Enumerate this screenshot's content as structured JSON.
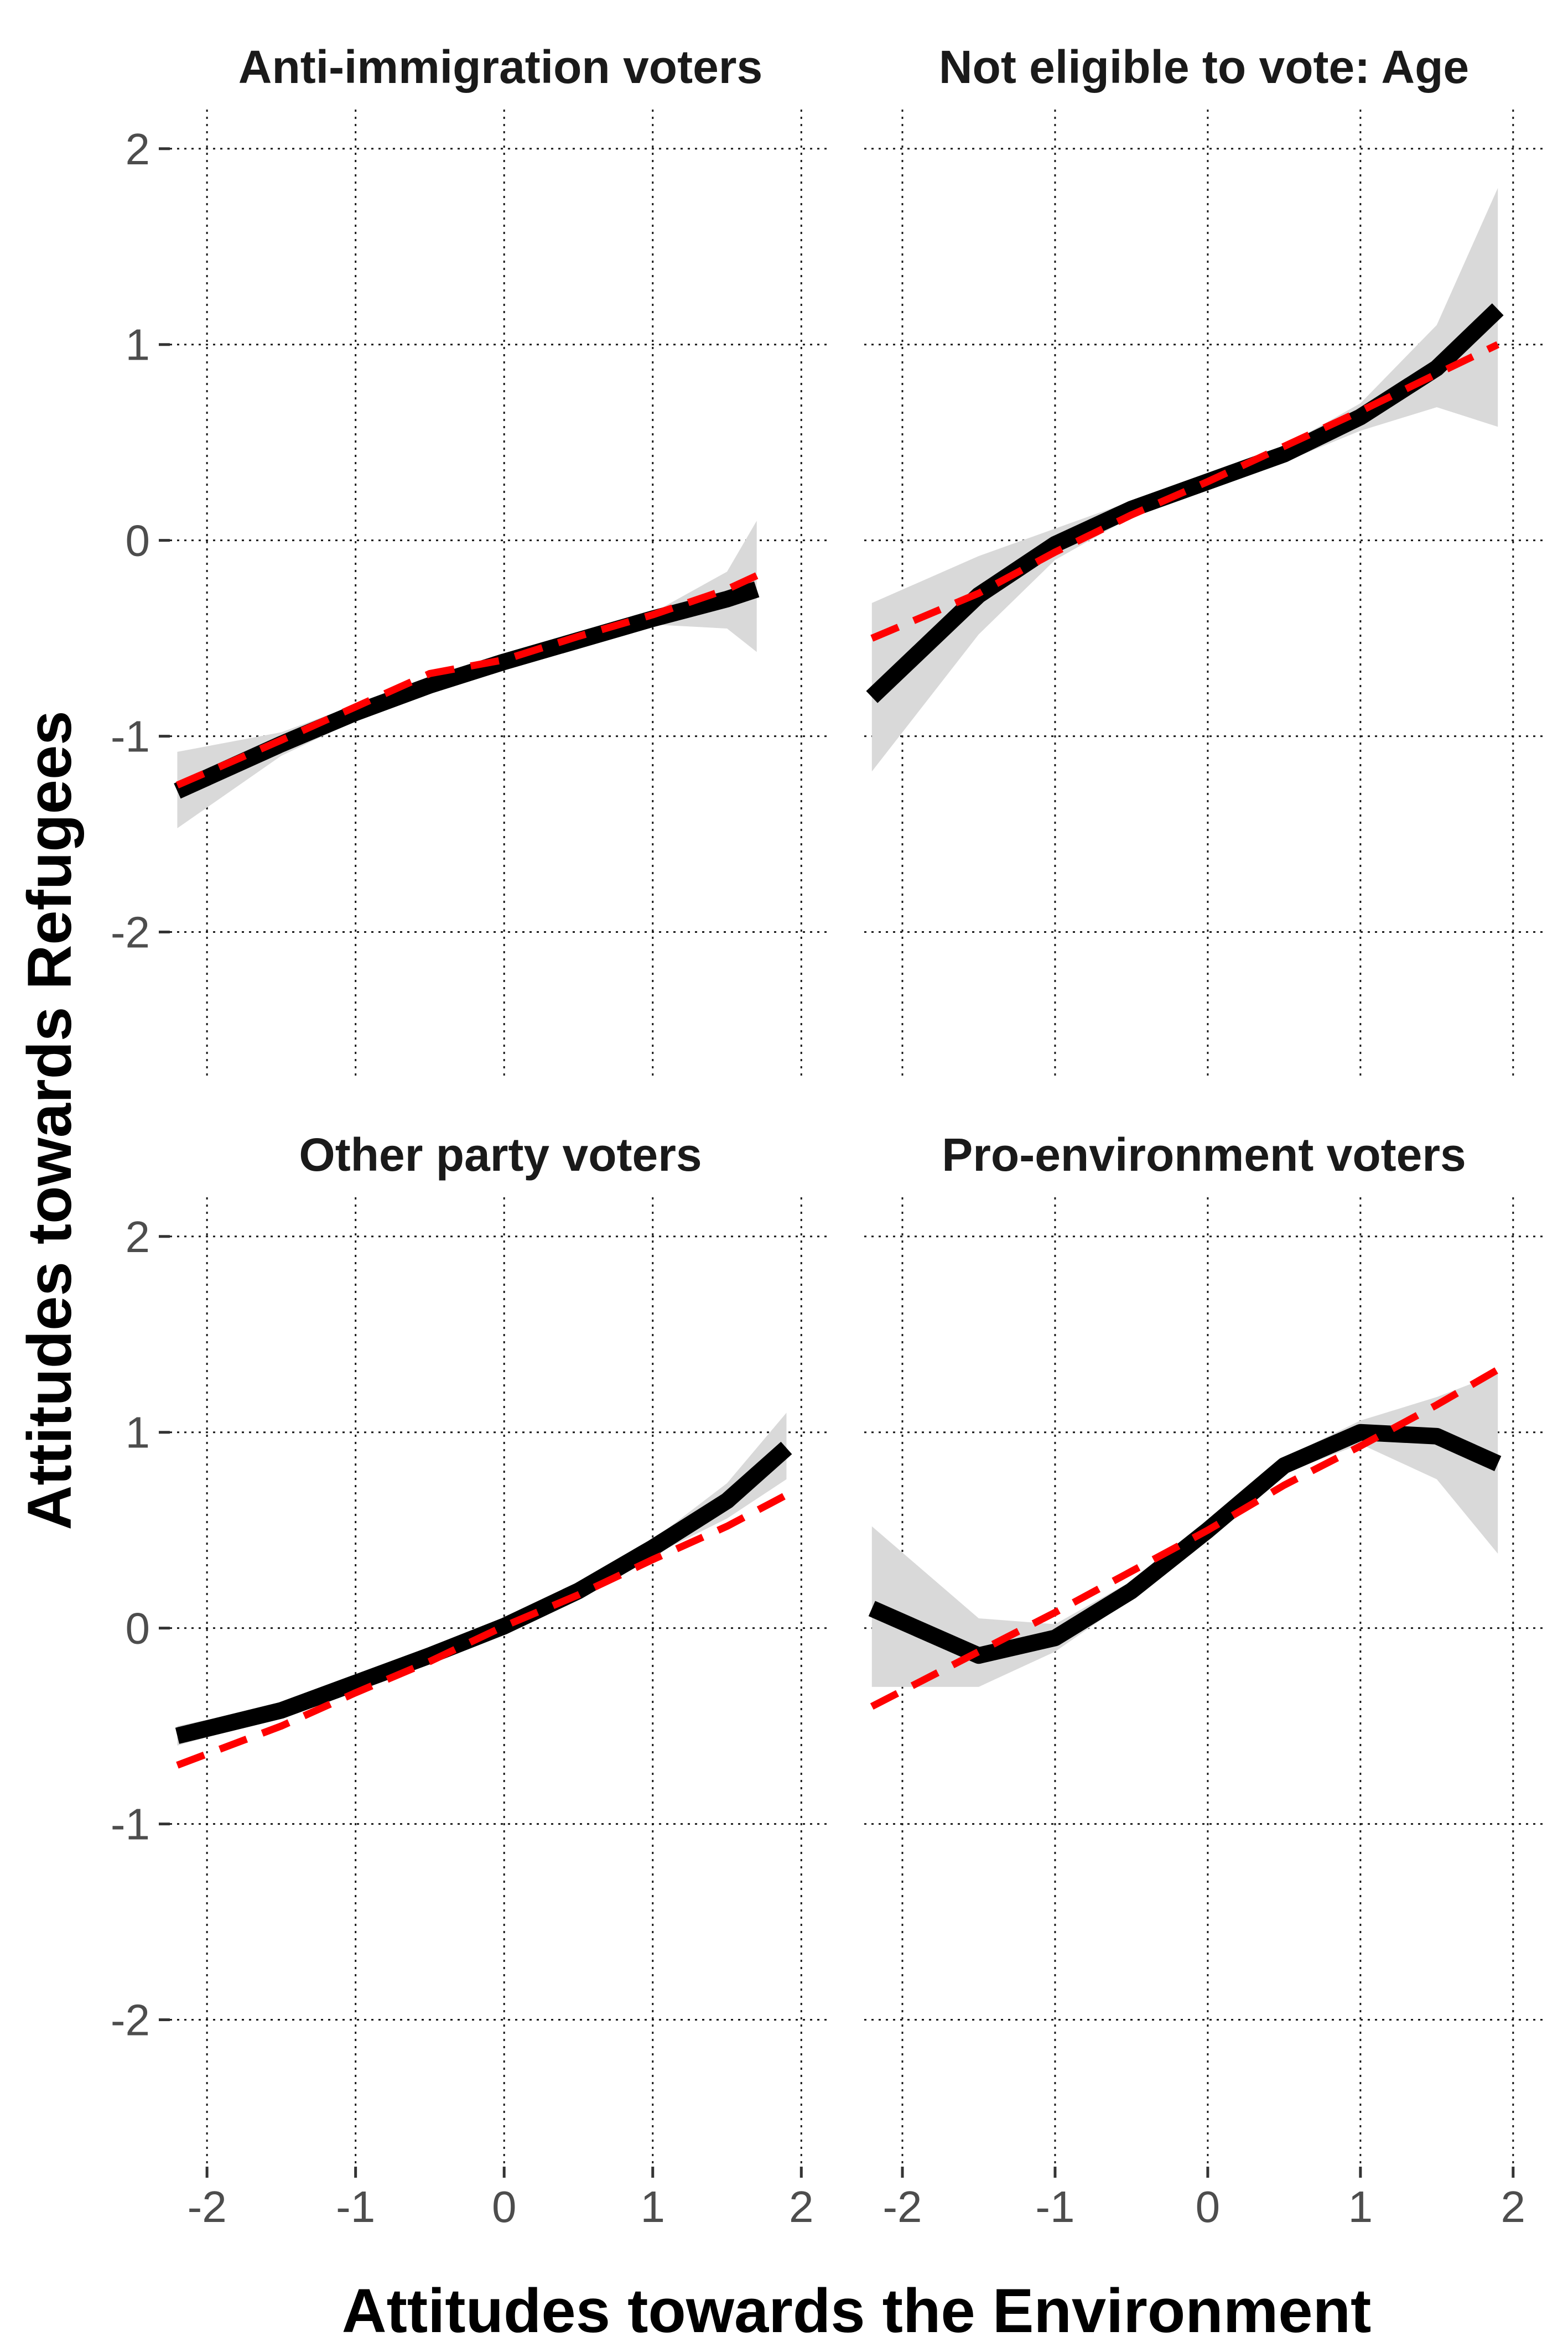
{
  "chart_data": {
    "type": "line",
    "xlabel": "Attitudes towards the Environment",
    "ylabel": "Attitudes towards Refugees",
    "xlim": [
      -2.25,
      2.2
    ],
    "ylim": [
      -2.75,
      2.2
    ],
    "x_ticks": [
      "-2",
      "-1",
      "0",
      "1",
      "2"
    ],
    "y_ticks": [
      "2",
      "1",
      "0",
      "-1",
      "-2"
    ],
    "x_tick_values": [
      -2,
      -1,
      0,
      1,
      2
    ],
    "y_tick_values": [
      2,
      1,
      0,
      -1,
      -2
    ],
    "grid": true,
    "colors": {
      "smooth": "#000000",
      "linear": "#ff0000",
      "band": "#d9d9d9"
    },
    "facets": [
      {
        "title": "Anti-immigration voters",
        "x": [
          -2.2,
          -1.5,
          -1,
          -0.5,
          0,
          0.5,
          1,
          1.5,
          1.7
        ],
        "smooth": [
          -1.28,
          -1.04,
          -0.88,
          -0.74,
          -0.62,
          -0.51,
          -0.4,
          -0.3,
          -0.25
        ],
        "lower": [
          -1.47,
          -1.1,
          -0.92,
          -0.77,
          -0.64,
          -0.53,
          -0.43,
          -0.45,
          -0.57
        ],
        "upper": [
          -1.08,
          -0.98,
          -0.84,
          -0.71,
          -0.6,
          -0.49,
          -0.37,
          -0.16,
          0.1
        ],
        "linear": [
          -1.25,
          -1.02,
          -0.85,
          -0.68,
          -0.61,
          -0.49,
          -0.38,
          -0.25,
          -0.18
        ]
      },
      {
        "title": "Not eligible to vote: Age",
        "x": [
          -2.2,
          -1.5,
          -1,
          -0.5,
          0,
          0.5,
          1,
          1.5,
          1.9
        ],
        "smooth": [
          -0.8,
          -0.28,
          -0.02,
          0.16,
          0.3,
          0.44,
          0.63,
          0.88,
          1.18
        ],
        "lower": [
          -1.18,
          -0.48,
          -0.1,
          0.12,
          0.27,
          0.4,
          0.56,
          0.68,
          0.58
        ],
        "upper": [
          -0.32,
          -0.08,
          0.06,
          0.2,
          0.33,
          0.48,
          0.7,
          1.1,
          1.8
        ],
        "linear": [
          -0.5,
          -0.27,
          -0.06,
          0.13,
          0.3,
          0.48,
          0.66,
          0.85,
          1.0
        ]
      },
      {
        "title": "Other party voters",
        "x": [
          -2.2,
          -1.5,
          -1,
          -0.5,
          0,
          0.5,
          1,
          1.5,
          1.9
        ],
        "smooth": [
          -0.55,
          -0.42,
          -0.28,
          -0.14,
          0.01,
          0.19,
          0.41,
          0.65,
          0.92
        ],
        "lower": [
          -0.6,
          -0.45,
          -0.3,
          -0.16,
          -0.01,
          0.16,
          0.37,
          0.56,
          0.76
        ],
        "upper": [
          -0.5,
          -0.39,
          -0.26,
          -0.12,
          0.03,
          0.22,
          0.45,
          0.74,
          1.1
        ],
        "linear": [
          -0.7,
          -0.5,
          -0.33,
          -0.17,
          0.01,
          0.17,
          0.35,
          0.52,
          0.68
        ]
      },
      {
        "title": "Pro-environment voters",
        "x": [
          -2.2,
          -1.5,
          -1,
          -0.5,
          0,
          0.5,
          1,
          1.5,
          1.9
        ],
        "smooth": [
          0.1,
          -0.14,
          -0.05,
          0.19,
          0.5,
          0.83,
          1.0,
          0.98,
          0.84
        ],
        "lower": [
          -0.3,
          -0.3,
          -0.12,
          0.15,
          0.46,
          0.79,
          0.94,
          0.76,
          0.38
        ],
        "upper": [
          0.52,
          0.05,
          0.02,
          0.24,
          0.54,
          0.87,
          1.06,
          1.18,
          1.3
        ],
        "linear": [
          -0.4,
          -0.12,
          0.08,
          0.29,
          0.5,
          0.73,
          0.93,
          1.14,
          1.32
        ]
      }
    ]
  }
}
